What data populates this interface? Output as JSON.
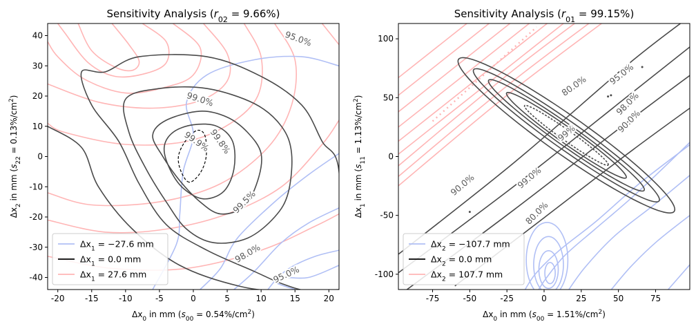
{
  "chart_data": [
    {
      "type": "contour",
      "title": "Sensitivity Analysis (r02 = 9.66%)",
      "title_parts": {
        "prefix": "Sensitivity Analysis (",
        "var": "r",
        "sub": "02",
        "suffix": " = 9.66%)"
      },
      "xlabel": "Δx0 in mm (s00 = 0.54%/cm²)",
      "xlabel_parts": {
        "pre": "Δx",
        "sub": "0",
        "mid": " in mm (",
        "svar": "s",
        "ssub": "00",
        "val": " = 0.54%/cm",
        "sup": "2",
        "end": ")"
      },
      "ylabel": "Δx2 in mm (s22 = 0.13%/cm²)",
      "ylabel_parts": {
        "pre": "Δx",
        "sub": "2",
        "mid": " in mm (",
        "svar": "s",
        "ssub": "22",
        "val": " = 0.13%/cm",
        "sup": "2",
        "end": ")"
      },
      "xlim": [
        -21.5,
        21.5
      ],
      "ylim": [
        -44,
        44
      ],
      "xticks": [
        -20,
        -15,
        -10,
        -5,
        0,
        5,
        10,
        15,
        20
      ],
      "xtick_labels": [
        "-20",
        "-15",
        "-10",
        "-5",
        "0",
        "5",
        "10",
        "15",
        "20"
      ],
      "yticks": [
        -40,
        -30,
        -20,
        -10,
        0,
        10,
        20,
        30,
        40
      ],
      "ytick_labels": [
        "-40",
        "-30",
        "-20",
        "-10",
        "0",
        "10",
        "20",
        "30",
        "40"
      ],
      "contour_labels": [
        {
          "text": "95.0%",
          "x": 15.5,
          "y": 39,
          "angle": 20
        },
        {
          "text": "99.0%",
          "x": 1.0,
          "y": 19,
          "angle": 18
        },
        {
          "text": "99.9%",
          "x": 0.5,
          "y": 5,
          "angle": 35
        },
        {
          "text": "99.8%",
          "x": 4.0,
          "y": 5,
          "angle": 55
        },
        {
          "text": "99.5%",
          "x": 7.5,
          "y": -15,
          "angle": -45
        },
        {
          "text": "98.0%",
          "x": 8.0,
          "y": -32,
          "angle": -30
        },
        {
          "text": "95.0%",
          "x": 13.7,
          "y": -39,
          "angle": -25
        }
      ],
      "legend_position": "lower-left",
      "legend": [
        {
          "label": "Δx1 = −27.6 mm",
          "pre": "Δx",
          "sub": "1",
          "val": " = −27.6 mm",
          "color": "#b0bff5"
        },
        {
          "label": "Δx1 = 0.0 mm",
          "pre": "Δx",
          "sub": "1",
          "val": " = 0.0 mm",
          "color": "#000000"
        },
        {
          "label": "Δx1 = 27.6 mm",
          "pre": "Δx",
          "sub": "1",
          "val": " = 27.6 mm",
          "color": "#ffb5b5"
        }
      ]
    },
    {
      "type": "contour",
      "title": "Sensitivity Analysis (r01 = 99.15%)",
      "title_parts": {
        "prefix": "Sensitivity Analysis (",
        "var": "r",
        "sub": "01",
        "suffix": " = 99.15%)"
      },
      "xlabel": "Δx0 in mm (s00 = 1.51%/cm²)",
      "xlabel_parts": {
        "pre": "Δx",
        "sub": "0",
        "mid": " in mm (",
        "svar": "s",
        "ssub": "00",
        "val": " = 1.51%/cm",
        "sup": "2",
        "end": ")"
      },
      "ylabel": "Δx1 in mm (s11 = 1.13%/cm²)",
      "ylabel_parts": {
        "pre": "Δx",
        "sub": "1",
        "mid": " in mm (",
        "svar": "s",
        "ssub": "11",
        "val": " = 1.13%/cm",
        "sup": "2",
        "end": ")"
      },
      "xlim": [
        -98,
        98
      ],
      "ylim": [
        -113,
        113
      ],
      "xticks": [
        -75,
        -50,
        -25,
        0,
        25,
        50,
        75
      ],
      "xtick_labels": [
        "-75",
        "-50",
        "-25",
        "0",
        "25",
        "50",
        "75"
      ],
      "yticks": [
        -100,
        -50,
        0,
        50,
        100
      ],
      "ytick_labels": [
        "-100",
        "-50",
        "0",
        "50",
        "100"
      ],
      "contour_labels": [
        {
          "text": "80.0%",
          "x": 20,
          "y": 60,
          "angle": -35
        },
        {
          "text": "95.0%",
          "x": 52,
          "y": 70,
          "angle": -38
        },
        {
          "text": "98.0%",
          "x": 56,
          "y": 45,
          "angle": -45
        },
        {
          "text": "90.0%",
          "x": 57,
          "y": 30,
          "angle": -45
        },
        {
          "text": "90.0%",
          "x": -55,
          "y": -24,
          "angle": -40
        },
        {
          "text": "99.0%",
          "x": -10,
          "y": -18,
          "angle": -40
        },
        {
          "text": "80.0%",
          "x": -5,
          "y": -48,
          "angle": -45
        },
        {
          "text": "99%",
          "x": 15,
          "y": 20,
          "angle": -40
        }
      ],
      "legend_position": "lower-left",
      "legend": [
        {
          "label": "Δx2 = −107.7 mm",
          "pre": "Δx",
          "sub": "2",
          "val": " = −107.7 mm",
          "color": "#b0bff5"
        },
        {
          "label": "Δx2 = 0.0 mm",
          "pre": "Δx",
          "sub": "2",
          "val": " = 0.0 mm",
          "color": "#000000"
        },
        {
          "label": "Δx2 = 107.7 mm",
          "pre": "Δx",
          "sub": "2",
          "val": " = 107.7 mm",
          "color": "#ffb5b5"
        }
      ]
    }
  ]
}
